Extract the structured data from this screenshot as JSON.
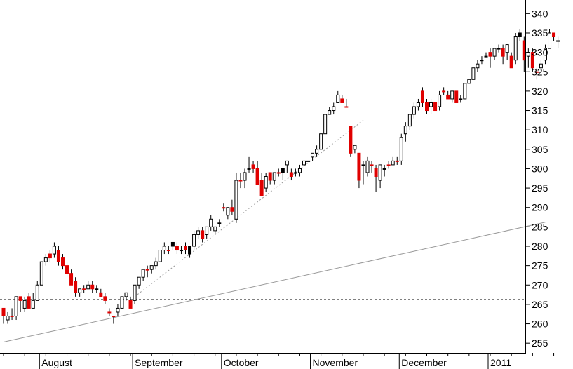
{
  "chart_data": {
    "type": "candlestick",
    "y_axis": {
      "position": "right",
      "ylim": [
        252.5,
        343.5
      ],
      "ticks": [
        255,
        260,
        265,
        270,
        275,
        280,
        285,
        290,
        295,
        300,
        305,
        310,
        315,
        320,
        325,
        330,
        335,
        340
      ],
      "tick_labels": [
        "255",
        "260",
        "265",
        "270",
        "275",
        "280",
        "285",
        "290",
        "295",
        "300",
        "305",
        "310",
        "315",
        "320",
        "325",
        "330",
        "335",
        "340"
      ]
    },
    "x_axis": {
      "labels": [
        {
          "label": "August",
          "after_candle": 9
        },
        {
          "label": "September",
          "after_candle": 31
        },
        {
          "label": "October",
          "after_candle": 52
        },
        {
          "label": "November",
          "after_candle": 73
        },
        {
          "label": "December",
          "after_candle": 94
        },
        {
          "label": "2011",
          "after_candle": 115
        }
      ],
      "minor_ticks_every": 5
    },
    "horizontal_line": {
      "value": 266.3,
      "style": "dashed",
      "color": "#555555"
    },
    "trendlines": [
      {
        "from": [
          0,
          255.3
        ],
        "to": [
          128,
          286.2
        ],
        "style": "solid",
        "color": "#999999"
      },
      {
        "from": [
          31,
          267.0
        ],
        "to": [
          85,
          312.5
        ],
        "style": "dotted",
        "color": "#999999"
      }
    ],
    "colors": {
      "up_fill": "#ffffff",
      "up_stroke": "#000000",
      "down_fill": "#e00000",
      "black_fill": "#000000",
      "wick": "#000000"
    },
    "candles": [
      [
        264,
        264,
        260,
        262,
        "d"
      ],
      [
        262,
        263,
        260,
        261,
        "u"
      ],
      [
        262,
        264,
        261,
        262,
        "d"
      ],
      [
        262,
        267,
        261,
        267,
        "u"
      ],
      [
        267,
        267,
        263,
        266,
        "d"
      ],
      [
        264,
        267,
        263,
        266,
        "u"
      ],
      [
        267,
        268,
        264,
        264,
        "d"
      ],
      [
        264,
        268,
        264,
        266,
        "u"
      ],
      [
        266,
        271,
        266,
        270,
        "u"
      ],
      [
        270,
        276,
        270,
        276,
        "u"
      ],
      [
        276,
        278,
        275,
        277,
        "u"
      ],
      [
        277,
        279,
        276,
        278,
        "d"
      ],
      [
        278,
        281,
        277,
        280,
        "u"
      ],
      [
        279,
        280,
        275,
        276,
        "d"
      ],
      [
        277,
        278,
        274,
        275,
        "d"
      ],
      [
        275,
        276,
        272,
        273,
        "d"
      ],
      [
        273,
        274,
        270,
        270,
        "d"
      ],
      [
        271,
        272,
        267,
        268,
        "d"
      ],
      [
        268,
        269,
        267,
        269,
        "u"
      ],
      [
        269,
        270,
        268,
        269,
        "d"
      ],
      [
        269,
        271,
        269,
        270,
        "u"
      ],
      [
        270,
        271,
        268,
        269,
        "d"
      ],
      [
        269,
        270,
        268,
        269,
        "u"
      ],
      [
        268,
        269,
        267,
        267,
        "d"
      ],
      [
        267,
        268,
        265,
        266,
        "d"
      ],
      [
        263,
        264,
        262,
        263,
        "d"
      ],
      [
        262,
        262,
        260,
        262,
        "d"
      ],
      [
        263,
        265,
        262,
        264,
        "u"
      ],
      [
        264,
        267,
        264,
        267,
        "u"
      ],
      [
        267,
        268,
        266,
        268,
        "u"
      ],
      [
        264,
        267,
        264,
        266,
        "d"
      ],
      [
        266,
        270,
        265,
        270,
        "u"
      ],
      [
        270,
        272,
        269,
        272,
        "u"
      ],
      [
        272,
        274,
        271,
        274,
        "u"
      ],
      [
        274,
        275,
        272,
        274,
        "d"
      ],
      [
        274,
        275,
        273,
        275,
        "u"
      ],
      [
        275,
        277,
        274,
        276,
        "u"
      ],
      [
        276,
        279,
        276,
        279,
        "u"
      ],
      [
        279,
        281,
        278,
        280,
        "u"
      ],
      [
        279,
        280,
        278,
        279,
        "d"
      ],
      [
        280,
        281,
        279,
        281,
        "b"
      ],
      [
        280,
        281,
        278,
        279,
        "d"
      ],
      [
        279,
        280,
        278,
        279,
        "u"
      ],
      [
        280,
        281,
        278,
        279,
        "d"
      ],
      [
        278,
        280,
        277,
        280,
        "b"
      ],
      [
        280,
        284,
        279,
        283,
        "u"
      ],
      [
        283,
        285,
        282,
        284,
        "u"
      ],
      [
        284,
        285,
        281,
        282,
        "d"
      ],
      [
        283,
        285,
        282,
        285,
        "u"
      ],
      [
        285,
        288,
        284,
        287,
        "u"
      ],
      [
        284,
        285,
        283,
        285,
        "u"
      ],
      [
        286,
        287,
        285,
        286,
        "u"
      ],
      [
        290,
        291,
        289,
        290,
        "d"
      ],
      [
        288,
        290,
        287,
        290,
        "u"
      ],
      [
        290,
        292,
        288,
        289,
        "d"
      ],
      [
        287,
        299,
        286,
        297,
        "u"
      ],
      [
        297,
        299,
        295,
        297,
        "d"
      ],
      [
        297,
        300,
        295,
        299,
        "u"
      ],
      [
        300,
        303,
        299,
        300,
        "b"
      ],
      [
        301,
        302,
        299,
        300,
        "d"
      ],
      [
        300,
        302,
        296,
        296,
        "d"
      ],
      [
        297,
        299,
        293,
        293,
        "d"
      ],
      [
        295,
        299,
        294,
        298,
        "u"
      ],
      [
        299,
        299,
        296,
        297,
        "d"
      ],
      [
        297,
        299,
        296,
        299,
        "u"
      ],
      [
        299,
        300,
        298,
        299,
        "d"
      ],
      [
        299,
        300,
        297,
        300,
        "b"
      ],
      [
        301,
        302,
        299,
        302,
        "u"
      ],
      [
        299,
        300,
        297,
        298,
        "d"
      ],
      [
        299,
        300,
        298,
        299,
        "u"
      ],
      [
        299,
        301,
        298,
        300,
        "u"
      ],
      [
        301,
        303,
        300,
        302,
        "u"
      ],
      [
        302,
        302,
        302,
        302,
        "b"
      ],
      [
        303,
        304,
        302,
        304,
        "u"
      ],
      [
        304,
        306,
        303,
        305,
        "u"
      ],
      [
        305,
        309,
        305,
        309,
        "u"
      ],
      [
        309,
        314,
        309,
        314,
        "u"
      ],
      [
        314,
        316,
        314,
        315,
        "u"
      ],
      [
        315,
        317,
        314,
        316,
        "u"
      ],
      [
        317,
        320,
        317,
        319,
        "u"
      ],
      [
        318,
        319,
        317,
        317,
        "d"
      ],
      [
        316,
        318,
        316,
        316,
        "d"
      ],
      [
        311,
        311,
        303,
        304,
        "d"
      ],
      [
        305,
        306,
        304,
        306,
        "u"
      ],
      [
        304,
        304,
        295,
        297,
        "d"
      ],
      [
        301,
        302,
        296,
        301,
        "u"
      ],
      [
        302,
        303,
        298,
        299,
        "u"
      ],
      [
        301,
        302,
        299,
        301,
        "d"
      ],
      [
        300,
        301,
        294,
        298,
        "d"
      ],
      [
        297,
        301,
        295,
        301,
        "u"
      ],
      [
        300,
        301,
        298,
        300,
        "u"
      ],
      [
        301,
        302,
        300,
        301,
        "d"
      ],
      [
        301,
        303,
        301,
        302,
        "u"
      ],
      [
        302,
        303,
        301,
        302,
        "d"
      ],
      [
        302,
        309,
        301,
        308,
        "u"
      ],
      [
        309,
        312,
        307,
        311,
        "u"
      ],
      [
        311,
        314,
        310,
        314,
        "u"
      ],
      [
        314,
        317,
        313,
        316,
        "u"
      ],
      [
        316,
        318,
        315,
        317,
        "u"
      ],
      [
        320,
        321,
        316,
        317,
        "d"
      ],
      [
        317,
        318,
        314,
        315,
        "d"
      ],
      [
        316,
        318,
        314,
        317,
        "u"
      ],
      [
        317,
        317,
        315,
        315,
        "d"
      ],
      [
        316,
        320,
        315,
        319,
        "u"
      ],
      [
        320,
        321,
        319,
        320,
        "d"
      ],
      [
        319,
        320,
        318,
        318,
        "d"
      ],
      [
        318,
        320,
        317,
        320,
        "u"
      ],
      [
        320,
        320,
        317,
        317,
        "d"
      ],
      [
        318,
        319,
        317,
        318,
        "u"
      ],
      [
        318,
        322,
        318,
        322,
        "u"
      ],
      [
        322,
        323,
        322,
        323,
        "u"
      ],
      [
        323,
        326,
        323,
        326,
        "u"
      ],
      [
        326,
        328,
        325,
        327,
        "u"
      ],
      [
        328,
        329,
        327,
        328,
        "u"
      ],
      [
        329,
        330,
        329,
        329,
        "u"
      ],
      [
        330,
        331,
        326,
        329,
        "d"
      ],
      [
        329,
        331,
        328,
        331,
        "u"
      ],
      [
        331,
        332,
        330,
        331,
        "u"
      ],
      [
        331,
        332,
        327,
        329,
        "d"
      ],
      [
        330,
        332,
        328,
        332,
        "u"
      ],
      [
        329,
        330,
        326,
        326,
        "d"
      ],
      [
        328,
        335,
        327,
        334,
        "u"
      ],
      [
        335,
        336,
        333,
        334,
        "b"
      ],
      [
        333,
        334,
        325,
        328,
        "d"
      ],
      [
        329,
        331,
        326,
        330,
        "u"
      ],
      [
        330,
        331,
        325,
        326,
        "d"
      ],
      [
        325,
        326,
        323,
        325,
        "d"
      ],
      [
        326,
        328,
        325,
        327,
        "u"
      ],
      [
        328,
        332,
        327,
        331,
        "u"
      ],
      [
        331,
        336,
        331,
        335,
        "u"
      ],
      [
        335,
        335,
        333,
        334,
        "d"
      ],
      [
        333,
        334,
        331,
        333,
        "u"
      ]
    ]
  }
}
